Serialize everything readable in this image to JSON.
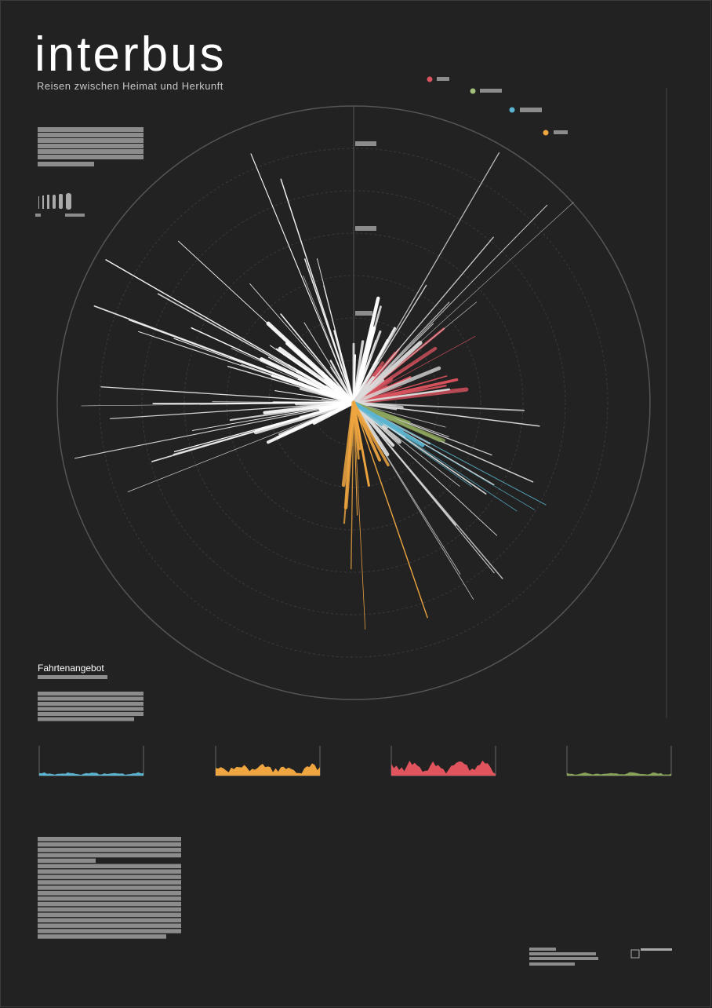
{
  "header": {
    "title": "interbus",
    "subtitle": "Reisen zwischen Heimat und Herkunft"
  },
  "section": {
    "heading": "Fahrtenangebot"
  }
}
